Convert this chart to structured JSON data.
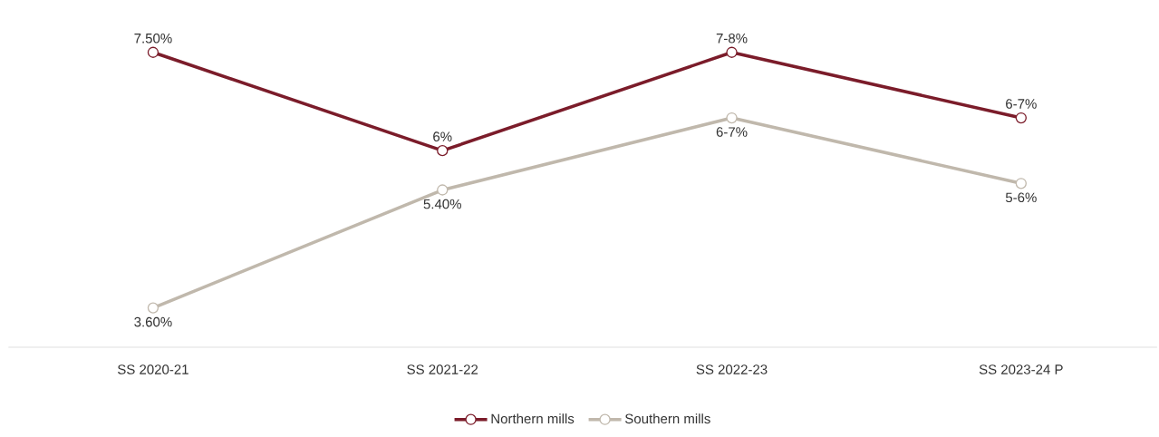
{
  "chart_data": {
    "type": "line",
    "categories": [
      "SS 2020-21",
      "SS 2021-22",
      "SS 2022-23",
      "SS 2023-24 P"
    ],
    "series": [
      {
        "name": "Northern mills",
        "color": "#7b1c2a",
        "values": [
          7.5,
          6,
          7.5,
          6.5
        ],
        "value_labels": [
          "7.50%",
          "6%",
          "7-8%",
          "6-7%"
        ]
      },
      {
        "name": "Southern mills",
        "color": "#c0b8ac",
        "values": [
          3.6,
          5.4,
          6.5,
          5.5
        ],
        "value_labels": [
          "3.60%",
          "5.40%",
          "6-7%",
          "5-6%"
        ]
      }
    ],
    "legend": "bottom",
    "marker": "circle"
  }
}
